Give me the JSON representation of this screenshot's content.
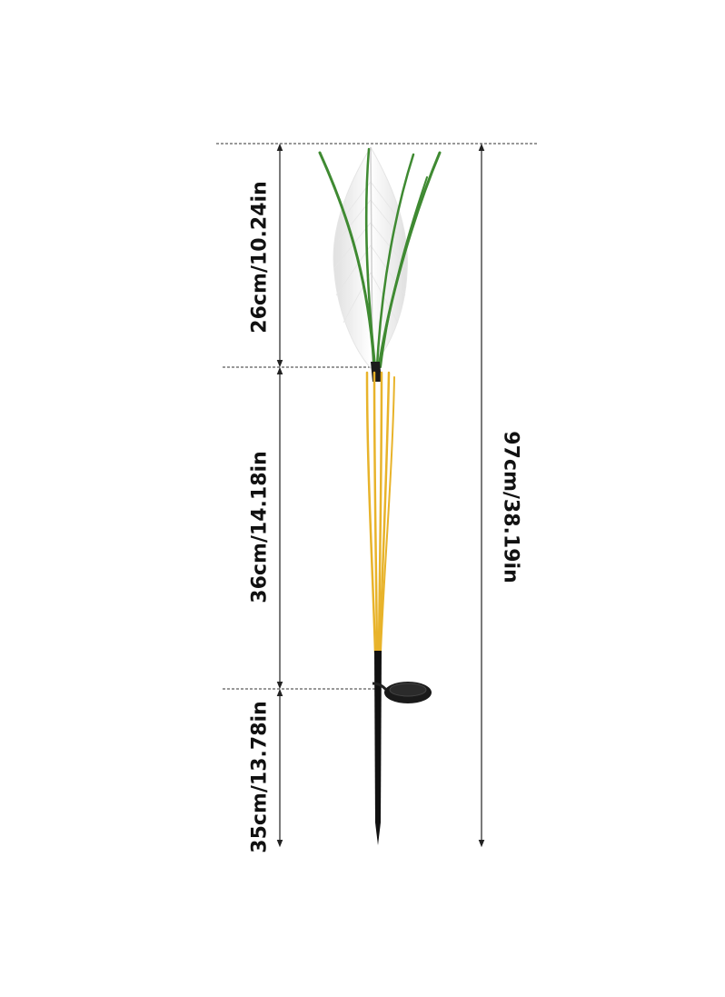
{
  "dimensions": {
    "top_section": "26cm/10.24in",
    "middle_section": "36cm/14.18in",
    "bottom_section": "35cm/13.78in",
    "total_height": "97cm/38.19in"
  },
  "colors": {
    "reed_green": "#3f8a32",
    "stem_yellow": "#e8b32a",
    "stake_black": "#111111",
    "feather_white": "#f2f2f2",
    "dim_line": "#222222"
  }
}
